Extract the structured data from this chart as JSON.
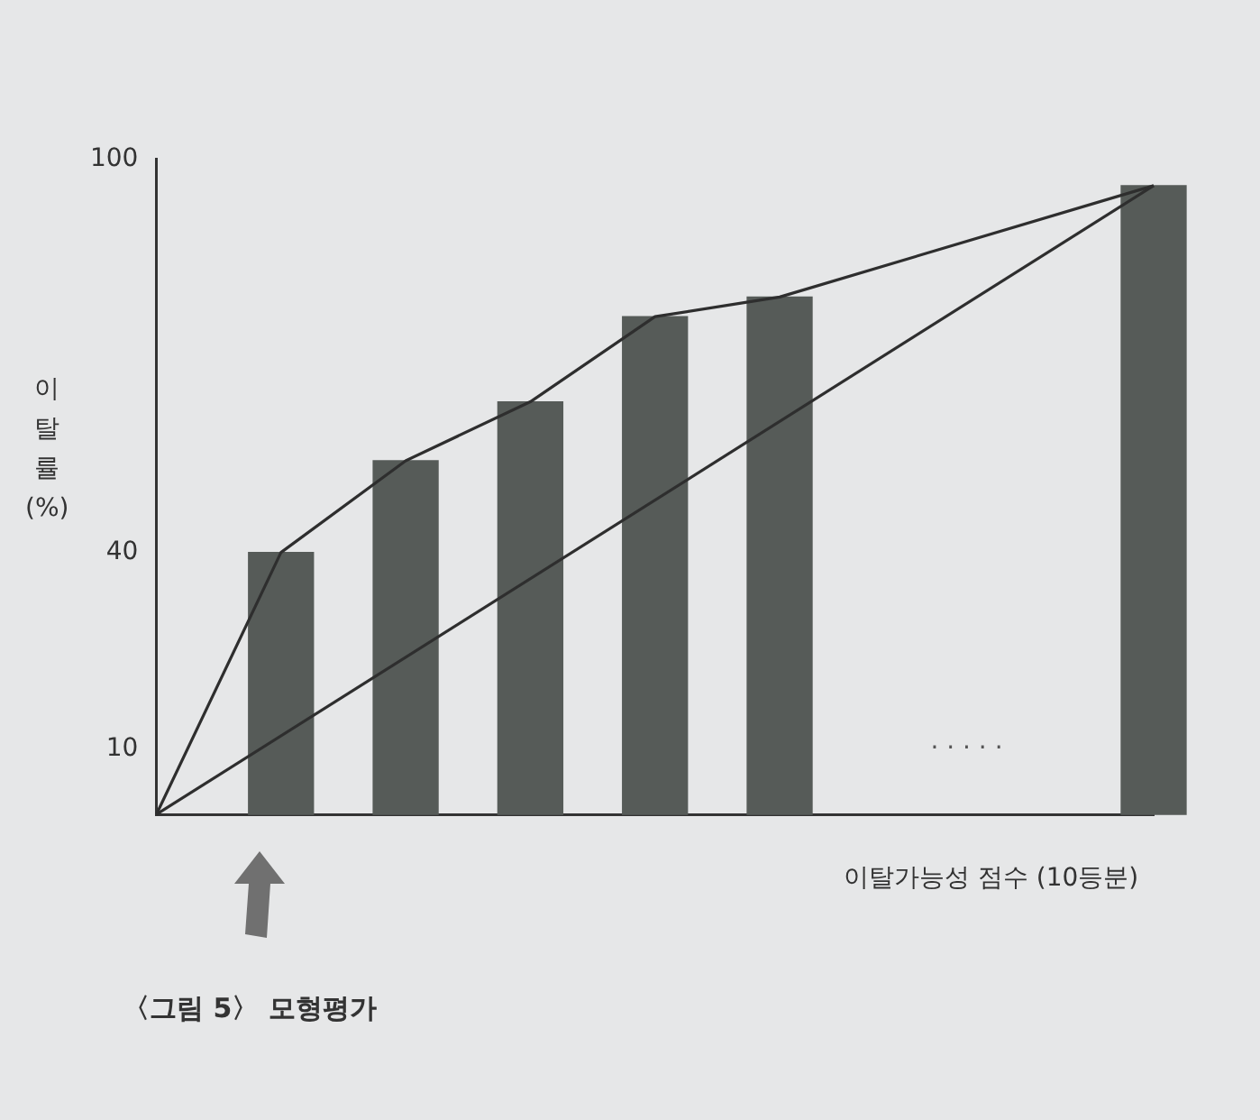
{
  "chart_data": {
    "type": "bar",
    "ylabel": "이탈률(%)",
    "xlabel": "이탈가능성 점수 (10등분)",
    "categories": [
      null,
      null,
      null,
      null,
      null,
      null,
      null,
      null,
      null
    ],
    "series": [
      {
        "color": "#565b58",
        "values": [
          null,
          40,
          54,
          63,
          76,
          79,
          null,
          null,
          96
        ]
      },
      {
        "type": "line",
        "color": "#2e2e2e",
        "values": [
          0,
          40,
          54,
          63,
          76,
          79,
          null,
          null,
          96
        ]
      },
      {
        "type": "line",
        "color": "#2e2e2e",
        "values": [
          0,
          null,
          null,
          null,
          null,
          null,
          null,
          null,
          96
        ]
      }
    ],
    "ylim": [
      0,
      100
    ],
    "yticks": [
      10,
      40,
      100
    ],
    "grid": false,
    "legend": false,
    "marker": "none",
    "tick_labels": "y",
    "annotations": [
      "· · · · ·",
      "〈그림 5〉 모형평가"
    ]
  }
}
